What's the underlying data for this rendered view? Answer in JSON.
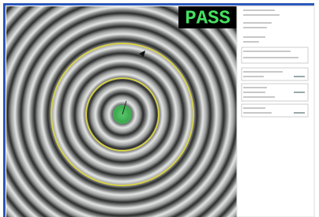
{
  "status": {
    "label": "PASS"
  }
}
